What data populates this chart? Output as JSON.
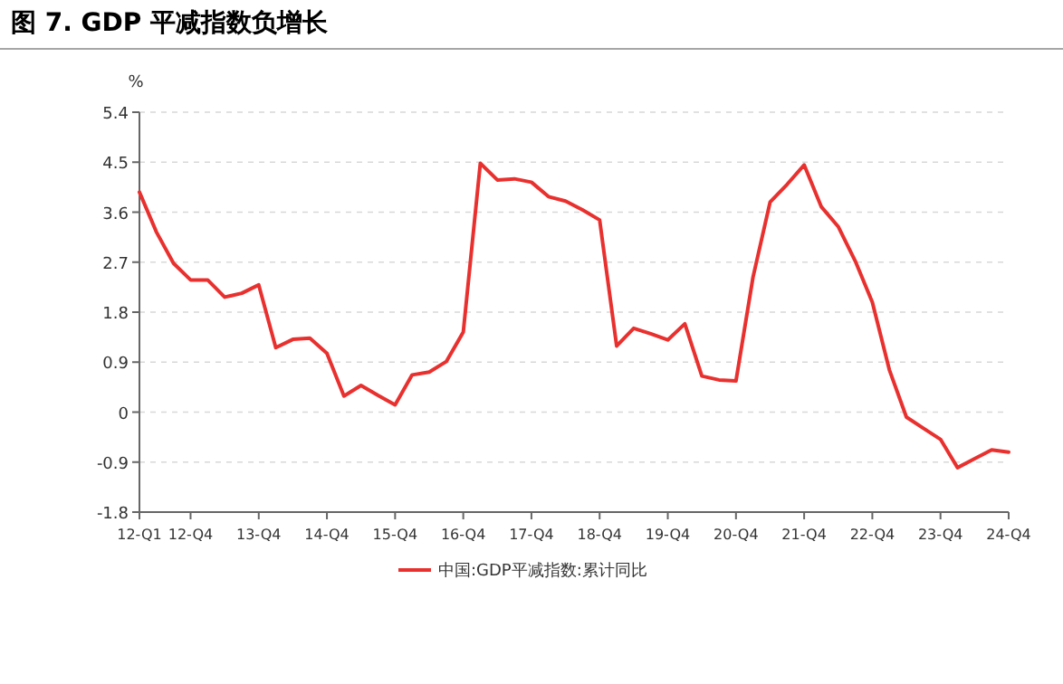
{
  "chart_data": {
    "type": "line",
    "title": "图 7. GDP 平减指数负增长",
    "ylabel": "%",
    "categories": [
      "12-Q1",
      null,
      null,
      "12-Q4",
      null,
      null,
      null,
      "13-Q4",
      null,
      null,
      null,
      "14-Q4",
      null,
      null,
      null,
      "15-Q4",
      null,
      null,
      null,
      "16-Q4",
      null,
      null,
      null,
      "17-Q4",
      null,
      null,
      null,
      "18-Q4",
      null,
      null,
      null,
      "19-Q4",
      null,
      null,
      null,
      "20-Q4",
      null,
      null,
      null,
      "21-Q4",
      null,
      null,
      null,
      "22-Q4",
      null,
      null,
      null,
      "23-Q4",
      null,
      null,
      null,
      "24-Q4"
    ],
    "series": [
      {
        "name": "中国:GDP平减指数:累计同比",
        "color": "#e8312f",
        "values": [
          3.96,
          3.24,
          2.68,
          2.38,
          2.38,
          2.07,
          2.14,
          2.29,
          1.16,
          1.31,
          1.33,
          1.06,
          0.29,
          0.48,
          0.3,
          0.13,
          0.67,
          0.72,
          0.91,
          1.44,
          4.48,
          4.18,
          4.2,
          4.14,
          3.88,
          3.8,
          3.64,
          3.46,
          1.19,
          1.51,
          1.41,
          1.3,
          1.59,
          0.65,
          0.58,
          0.56,
          2.43,
          3.78,
          4.1,
          4.45,
          3.7,
          3.34,
          2.72,
          1.98,
          0.76,
          -0.09,
          -0.29,
          -0.49,
          -1.0,
          -0.84,
          -0.68,
          -0.72
        ]
      }
    ],
    "ylim": [
      -1.8,
      5.4
    ],
    "yticks": [
      -1.8,
      -0.9,
      0,
      0.9,
      1.8,
      2.7,
      3.6,
      4.5,
      5.4
    ],
    "grid": "y",
    "legend": "bottom"
  }
}
